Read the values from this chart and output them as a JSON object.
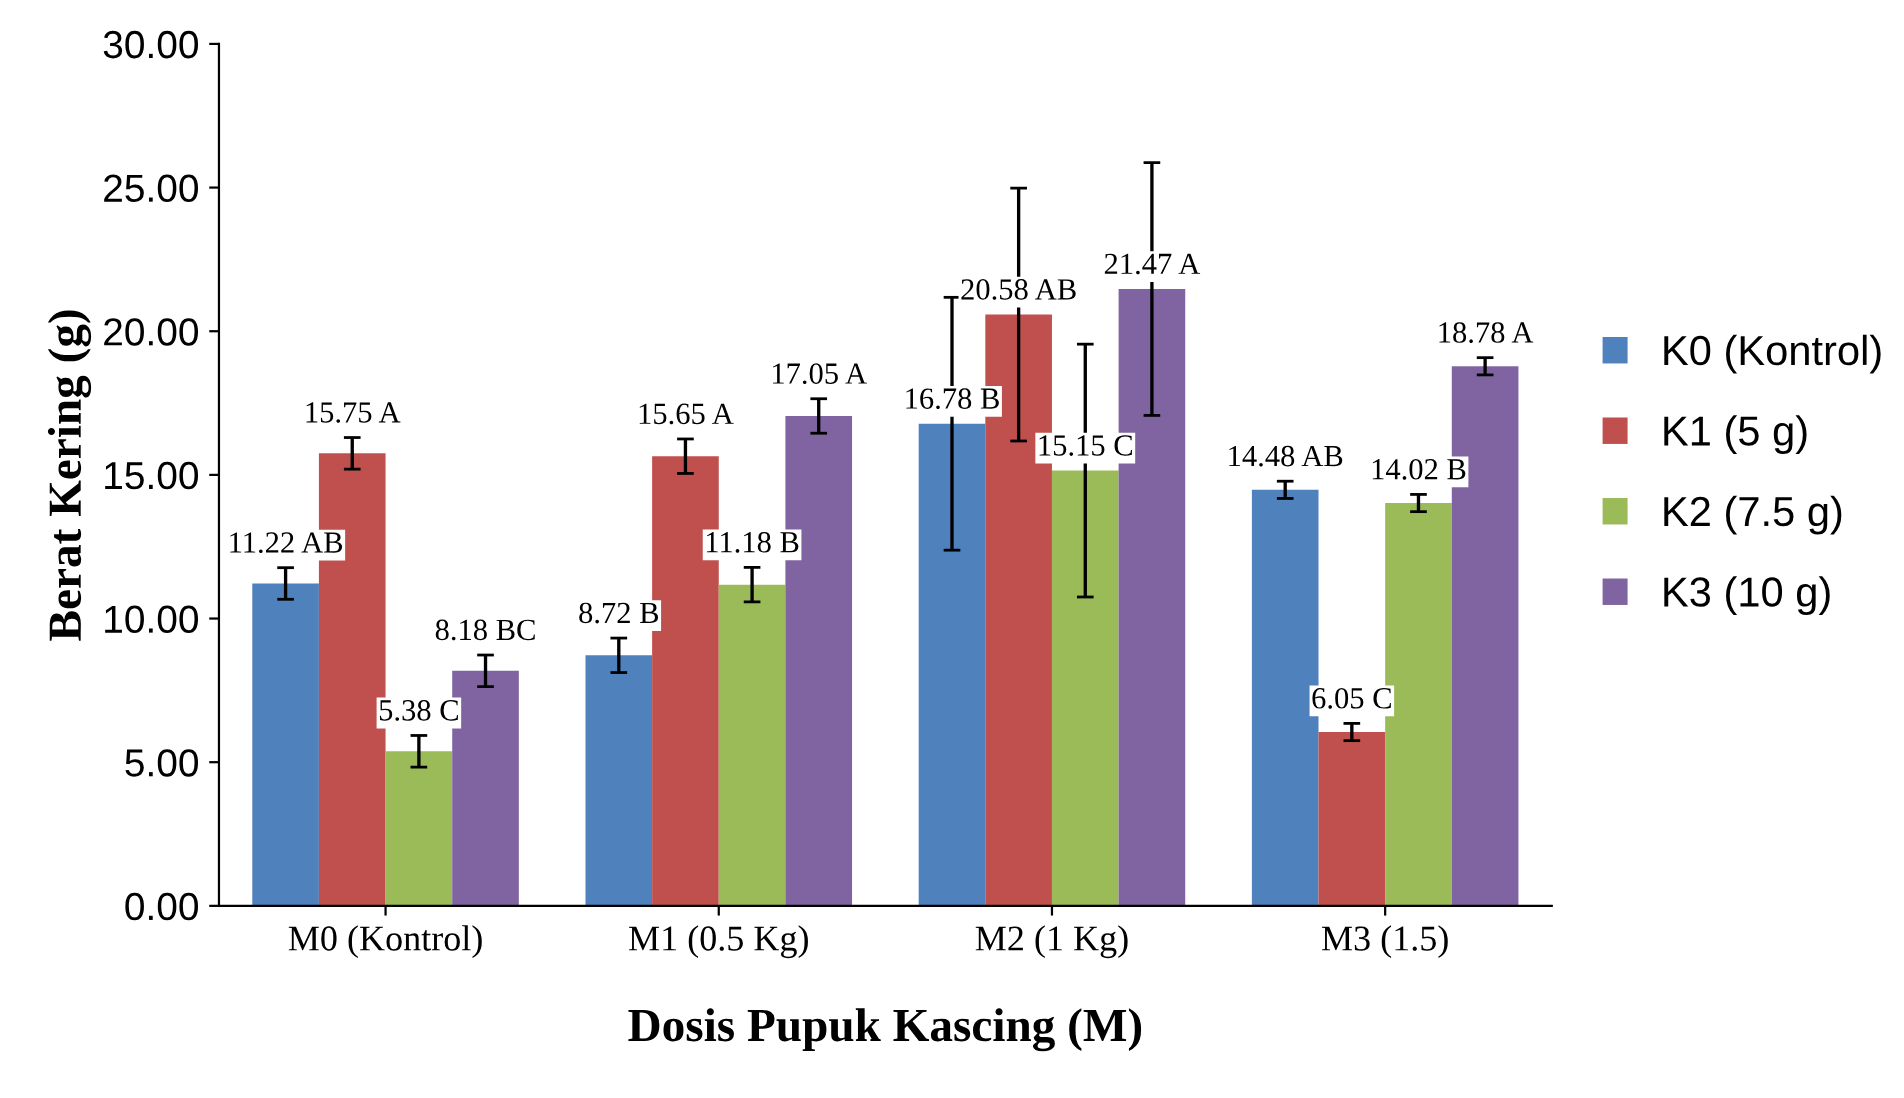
{
  "chart_data": {
    "type": "bar",
    "xlabel": "Dosis Pupuk Kascing (M)",
    "ylabel": "Berat Kering (g)",
    "categories": [
      "M0 (Kontrol)",
      "M1 (0.5 Kg)",
      "M2 (1 Kg)",
      "M3 (1.5)"
    ],
    "series": [
      {
        "name": "K0 (Kontrol)",
        "color": "#4f81bd",
        "values": [
          11.22,
          8.72,
          16.78,
          14.48
        ],
        "errors": [
          0.55,
          0.6,
          4.4,
          0.3
        ],
        "value_labels": [
          "11.22 AB",
          "8.72 B",
          "16.78 B",
          "14.48 AB"
        ]
      },
      {
        "name": "K1 (5 g)",
        "color": "#c0504d",
        "values": [
          15.75,
          15.65,
          20.58,
          6.05
        ],
        "errors": [
          0.55,
          0.6,
          4.4,
          0.3
        ],
        "value_labels": [
          "15.75 A",
          "15.65 A",
          "20.58 AB",
          "6.05 C"
        ]
      },
      {
        "name": "K2 (7.5 g)",
        "color": "#9bbb59",
        "values": [
          5.38,
          11.18,
          15.15,
          14.02
        ],
        "errors": [
          0.55,
          0.6,
          4.4,
          0.3
        ],
        "value_labels": [
          "5.38 C",
          "11.18 B",
          "15.15 C",
          "14.02 B"
        ]
      },
      {
        "name": "K3 (10 g)",
        "color": "#8064a2",
        "values": [
          8.18,
          17.05,
          21.47,
          18.78
        ],
        "errors": [
          0.55,
          0.6,
          4.4,
          0.3
        ],
        "value_labels": [
          "8.18 BC",
          "17.05 A",
          "21.47 A",
          "18.78 A"
        ]
      }
    ],
    "ylim": [
      0,
      30
    ],
    "yticks": [
      {
        "value": 0,
        "label": "0.00"
      },
      {
        "value": 5,
        "label": "5.00"
      },
      {
        "value": 10,
        "label": "10.00"
      },
      {
        "value": 15,
        "label": "15.00"
      },
      {
        "value": 20,
        "label": "20.00"
      },
      {
        "value": 25,
        "label": "25.00"
      },
      {
        "value": 30,
        "label": "30.00"
      }
    ],
    "grid": false,
    "legend": "right"
  }
}
